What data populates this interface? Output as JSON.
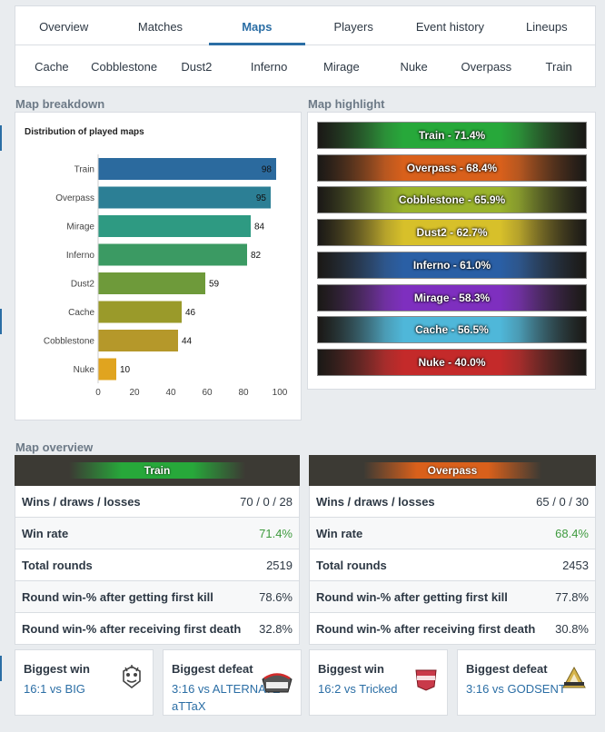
{
  "tabs": [
    "Overview",
    "Matches",
    "Maps",
    "Players",
    "Event history",
    "Lineups"
  ],
  "active_tab": "Maps",
  "map_tabs": [
    "Cache",
    "Cobblestone",
    "Dust2",
    "Inferno",
    "Mirage",
    "Nuke",
    "Overpass",
    "Train"
  ],
  "breakdown": {
    "title": "Map breakdown"
  },
  "highlight": {
    "title": "Map highlight",
    "items": [
      {
        "label": "Train - 71.4%",
        "color": "#27a83a"
      },
      {
        "label": "Overpass - 68.4%",
        "color": "#d9601b"
      },
      {
        "label": "Cobblestone - 65.9%",
        "color": "#9ab32c"
      },
      {
        "label": "Dust2 - 62.7%",
        "color": "#d7c02a"
      },
      {
        "label": "Inferno - 61.0%",
        "color": "#2a5fa5"
      },
      {
        "label": "Mirage - 58.3%",
        "color": "#7e2fbf"
      },
      {
        "label": "Cache - 56.5%",
        "color": "#4fb7d9"
      },
      {
        "label": "Nuke - 40.0%",
        "color": "#c42a2a"
      }
    ]
  },
  "chart_data": {
    "type": "bar",
    "orientation": "horizontal",
    "title": "Distribution of played maps",
    "categories": [
      "Train",
      "Overpass",
      "Mirage",
      "Inferno",
      "Dust2",
      "Cache",
      "Cobblestone",
      "Nuke"
    ],
    "values": [
      98,
      95,
      84,
      82,
      59,
      46,
      44,
      10
    ],
    "colors": [
      "#2b6a9e",
      "#2c7f95",
      "#2e9a82",
      "#3b9a63",
      "#6e9a3a",
      "#9a9a2a",
      "#b5982a",
      "#e0a41f"
    ],
    "xlim": [
      0,
      100
    ],
    "xticks": [
      "0",
      "20",
      "40",
      "60",
      "80",
      "100"
    ],
    "grid": false,
    "legend": "none"
  },
  "overview": {
    "title": "Map overview",
    "cards": [
      {
        "map": "Train",
        "color": "#27a83a",
        "rows": [
          {
            "k": "Wins / draws / losses",
            "v": "70 / 0 / 28",
            "green": false
          },
          {
            "k": "Win rate",
            "v": "71.4%",
            "green": true
          },
          {
            "k": "Total rounds",
            "v": "2519",
            "green": false
          },
          {
            "k": "Round win-% after getting first kill",
            "v": "78.6%",
            "green": false
          },
          {
            "k": "Round win-% after receiving first death",
            "v": "32.8%",
            "green": false
          }
        ],
        "biggest_win": {
          "title": "Biggest win",
          "score": "16:1 vs BIG",
          "logo": "big-logo"
        },
        "biggest_defeat": {
          "title": "Biggest defeat",
          "score": "3:16 vs ALTERNATE",
          "line2": "aTTaX",
          "logo": "alternate-attax-logo"
        }
      },
      {
        "map": "Overpass",
        "color": "#d9601b",
        "rows": [
          {
            "k": "Wins / draws / losses",
            "v": "65 / 0 / 30",
            "green": false
          },
          {
            "k": "Win rate",
            "v": "68.4%",
            "green": true
          },
          {
            "k": "Total rounds",
            "v": "2453",
            "green": false
          },
          {
            "k": "Round win-% after getting first kill",
            "v": "77.8%",
            "green": false
          },
          {
            "k": "Round win-% after receiving first death",
            "v": "30.8%",
            "green": false
          }
        ],
        "biggest_win": {
          "title": "Biggest win",
          "score": "16:2 vs Tricked",
          "logo": "tricked-logo"
        },
        "biggest_defeat": {
          "title": "Biggest defeat",
          "score": "3:16 vs GODSENT",
          "logo": "godsent-logo"
        }
      }
    ]
  }
}
